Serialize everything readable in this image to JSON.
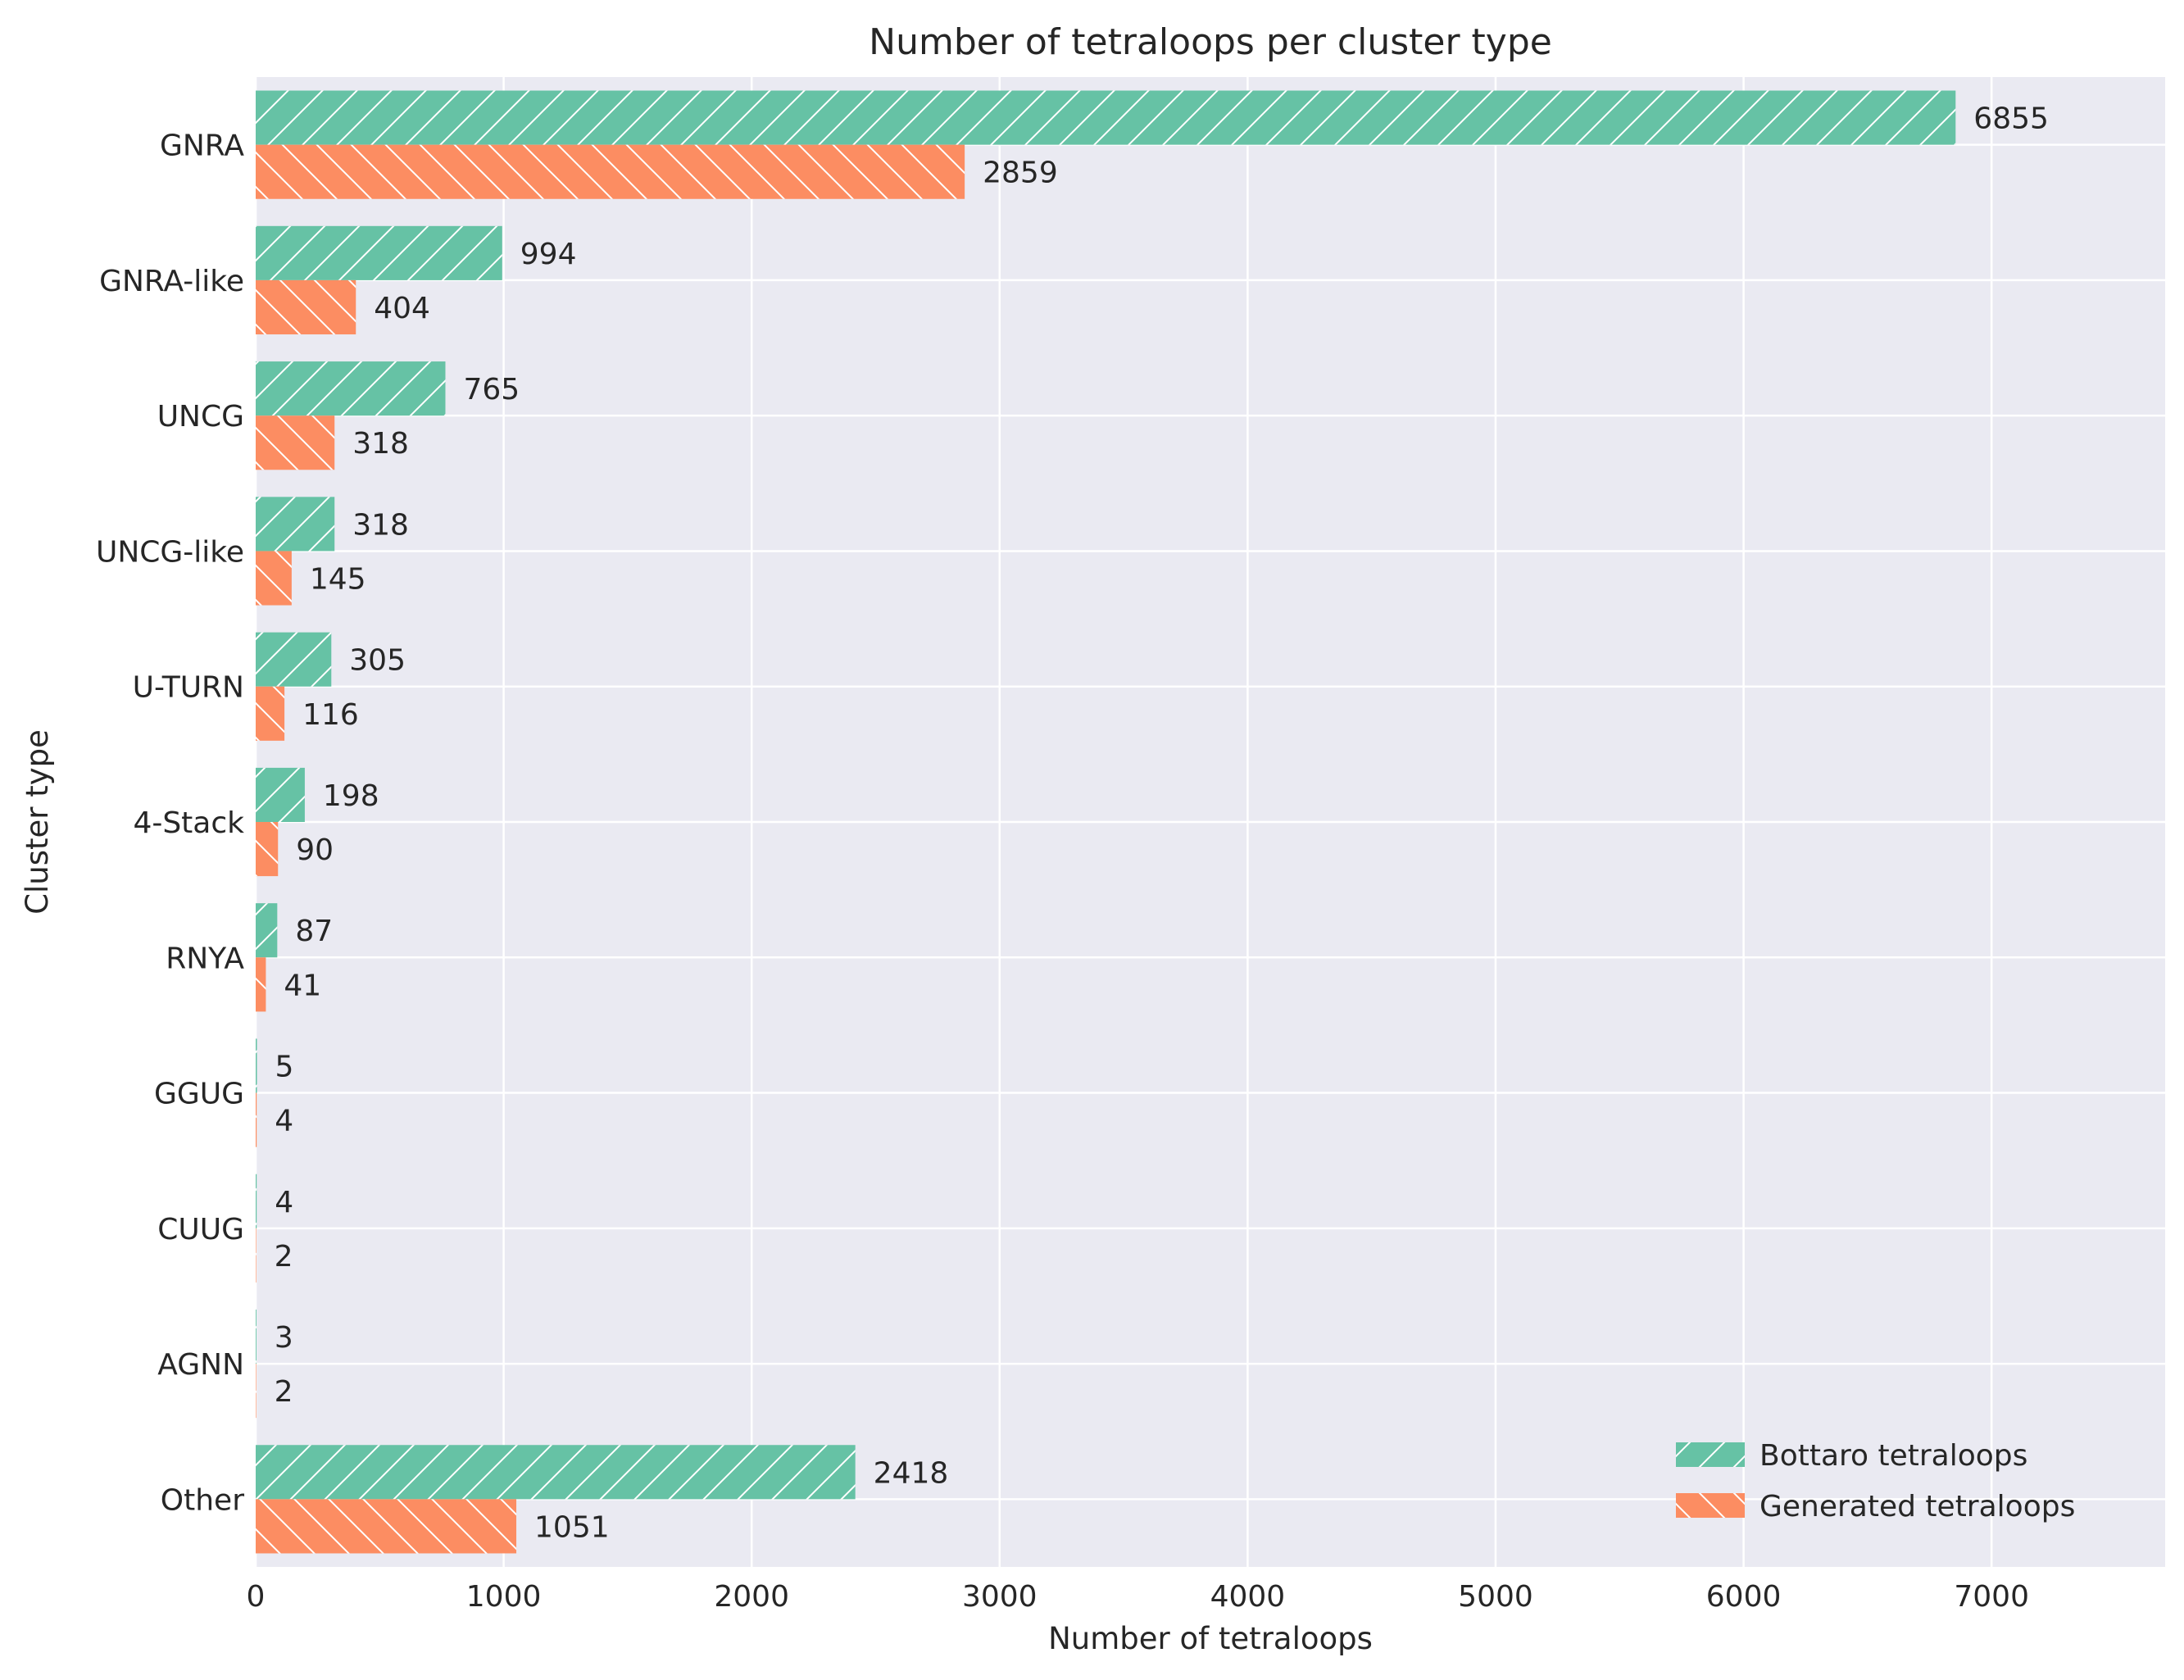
{
  "chart_data": {
    "type": "bar",
    "orientation": "horizontal",
    "title": "Number of tetraloops per cluster type",
    "xlabel": "Number of tetraloops",
    "ylabel": "Cluster type",
    "categories": [
      "GNRA",
      "GNRA-like",
      "UNCG",
      "UNCG-like",
      "U-TURN",
      "4-Stack",
      "RNYA",
      "GGUG",
      "CUUG",
      "AGNN",
      "Other"
    ],
    "series": [
      {
        "name": "Bottaro tetraloops",
        "values": [
          6855,
          994,
          765,
          318,
          305,
          198,
          87,
          5,
          4,
          3,
          2418
        ],
        "color": "#66c2a5",
        "hatch": "/"
      },
      {
        "name": "Generated tetraloops",
        "values": [
          2859,
          404,
          318,
          145,
          116,
          90,
          41,
          4,
          2,
          2,
          1051
        ],
        "color": "#fc8d62",
        "hatch": "\\"
      }
    ],
    "xlim": [
      0,
      7700
    ],
    "xticks": [
      0,
      1000,
      2000,
      3000,
      4000,
      5000,
      6000,
      7000
    ],
    "grid": true,
    "legend_position": "lower-right",
    "background": "#eaeaf2"
  }
}
